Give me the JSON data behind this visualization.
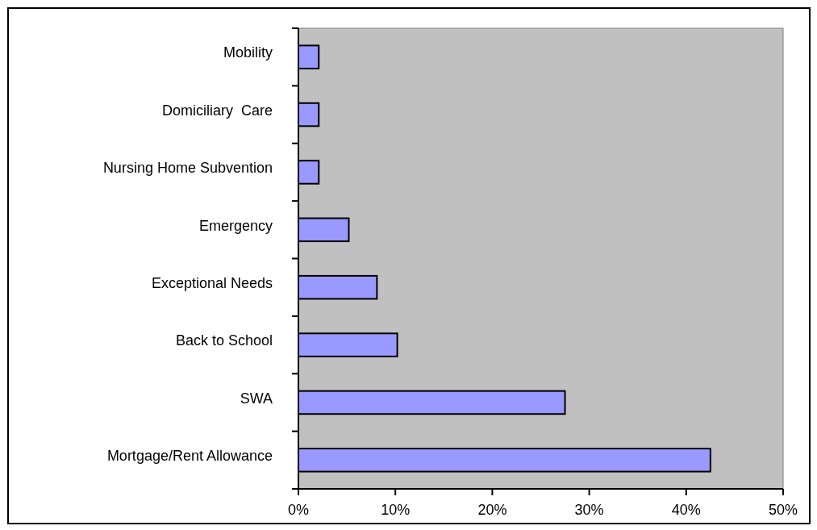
{
  "chart_data": {
    "type": "bar",
    "orientation": "horizontal",
    "categories": [
      "Mobility",
      "Domiciliary  Care",
      "Nursing Home Subvention",
      "Emergency",
      "Exceptional Needs",
      "Back to School",
      "SWA",
      "Mortgage/Rent Allowance"
    ],
    "values": [
      2.1,
      2.1,
      2.1,
      5.2,
      8.1,
      10.2,
      27.5,
      42.5
    ],
    "color": "#9999ff",
    "xlim": [
      0,
      50
    ],
    "xticks": [
      {
        "value": 0,
        "label": "0%"
      },
      {
        "value": 10,
        "label": "10%"
      },
      {
        "value": 20,
        "label": "20%"
      },
      {
        "value": 30,
        "label": "30%"
      },
      {
        "value": 40,
        "label": "40%"
      },
      {
        "value": 50,
        "label": "50%"
      }
    ],
    "grid": false
  }
}
